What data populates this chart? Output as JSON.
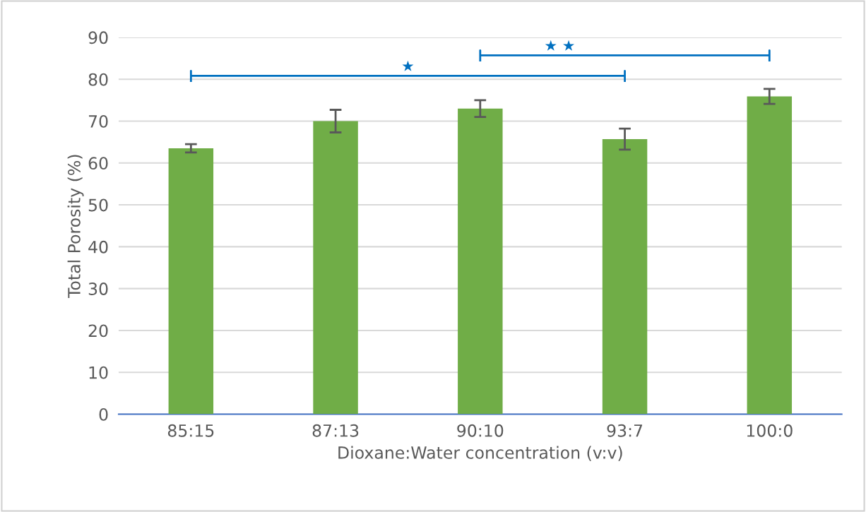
{
  "chart_data": {
    "type": "bar",
    "xlabel": "Dioxane:Water concentration (v:v)",
    "ylabel": "Total Porosity (%)",
    "categories": [
      "85:15",
      "87:13",
      "90:10",
      "93:7",
      "100:0"
    ],
    "values": [
      63.5,
      70.0,
      73.0,
      65.7,
      75.9
    ],
    "errors": [
      1.0,
      2.7,
      2.0,
      2.5,
      1.8
    ],
    "color": "#70ad47",
    "ylim": [
      0,
      90
    ],
    "yticks": [
      0,
      10,
      20,
      30,
      40,
      50,
      60,
      70,
      80,
      90
    ],
    "grid": "y",
    "legend": false,
    "annotations": [
      "★",
      "★ ★"
    ]
  }
}
